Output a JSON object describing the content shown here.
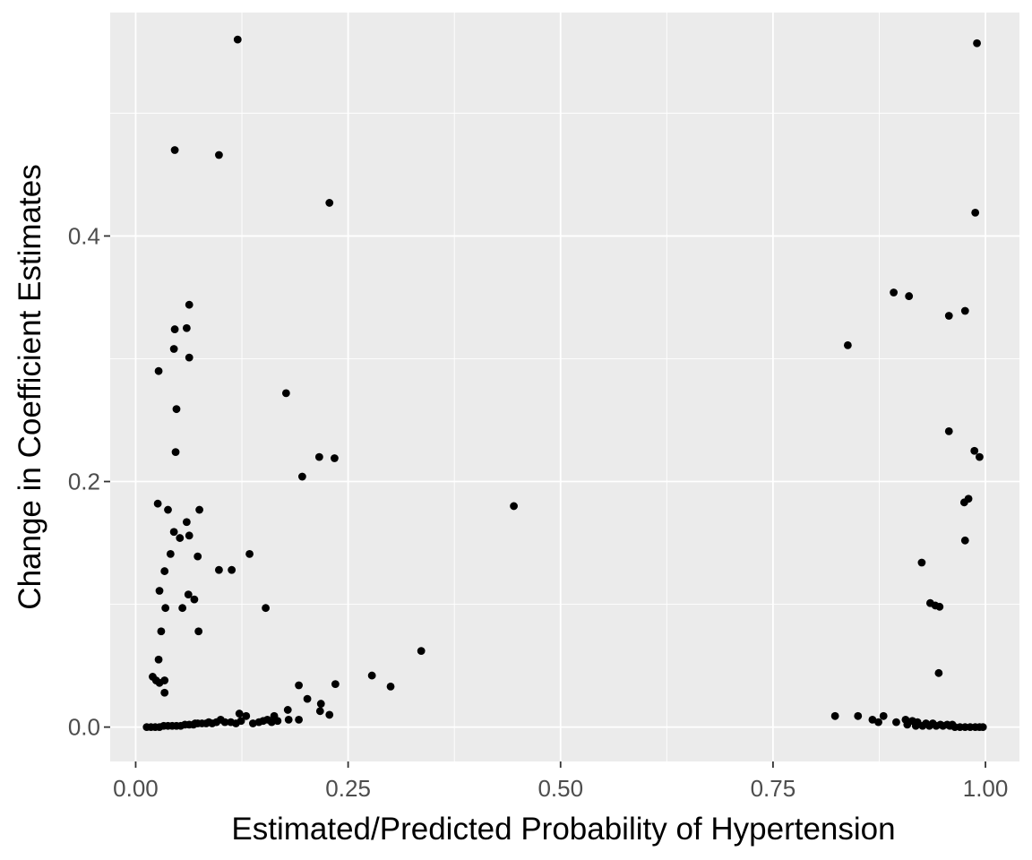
{
  "chart_data": {
    "type": "scatter",
    "title": "",
    "xlabel": "Estimated/Predicted Probability of Hypertension",
    "ylabel": "Change in Coefficient Estimates",
    "xlim": [
      -0.03,
      1.04
    ],
    "ylim": [
      -0.028,
      0.582
    ],
    "x_ticks": [
      0.0,
      0.25,
      0.5,
      0.75,
      1.0
    ],
    "x_tick_labels": [
      "0.00",
      "0.25",
      "0.50",
      "0.75",
      "1.00"
    ],
    "y_ticks": [
      0.0,
      0.2,
      0.4
    ],
    "y_tick_labels": [
      "0.0",
      "0.2",
      "0.4"
    ],
    "grid": true,
    "legend": "none",
    "colors": {
      "panel": "#ebebeb",
      "grid": "#ffffff",
      "point": "#000000"
    },
    "series": [
      {
        "points": [
          [
            0.12,
            0.56
          ],
          [
            0.99,
            0.557
          ],
          [
            0.046,
            0.47
          ],
          [
            0.098,
            0.466
          ],
          [
            0.228,
            0.427
          ],
          [
            0.988,
            0.419
          ],
          [
            0.892,
            0.354
          ],
          [
            0.91,
            0.351
          ],
          [
            0.063,
            0.344
          ],
          [
            0.976,
            0.339
          ],
          [
            0.957,
            0.335
          ],
          [
            0.046,
            0.324
          ],
          [
            0.06,
            0.325
          ],
          [
            0.045,
            0.308
          ],
          [
            0.063,
            0.301
          ],
          [
            0.838,
            0.311
          ],
          [
            0.027,
            0.29
          ],
          [
            0.177,
            0.272
          ],
          [
            0.048,
            0.259
          ],
          [
            0.957,
            0.241
          ],
          [
            0.987,
            0.225
          ],
          [
            0.993,
            0.22
          ],
          [
            0.047,
            0.224
          ],
          [
            0.216,
            0.22
          ],
          [
            0.234,
            0.219
          ],
          [
            0.196,
            0.204
          ],
          [
            0.98,
            0.186
          ],
          [
            0.975,
            0.183
          ],
          [
            0.026,
            0.182
          ],
          [
            0.445,
            0.18
          ],
          [
            0.038,
            0.177
          ],
          [
            0.075,
            0.177
          ],
          [
            0.06,
            0.167
          ],
          [
            0.045,
            0.159
          ],
          [
            0.052,
            0.154
          ],
          [
            0.063,
            0.156
          ],
          [
            0.976,
            0.152
          ],
          [
            0.041,
            0.141
          ],
          [
            0.073,
            0.139
          ],
          [
            0.134,
            0.141
          ],
          [
            0.925,
            0.134
          ],
          [
            0.098,
            0.128
          ],
          [
            0.113,
            0.128
          ],
          [
            0.034,
            0.127
          ],
          [
            0.028,
            0.111
          ],
          [
            0.062,
            0.108
          ],
          [
            0.069,
            0.104
          ],
          [
            0.935,
            0.101
          ],
          [
            0.941,
            0.099
          ],
          [
            0.946,
            0.098
          ],
          [
            0.035,
            0.097
          ],
          [
            0.055,
            0.097
          ],
          [
            0.153,
            0.097
          ],
          [
            0.03,
            0.078
          ],
          [
            0.074,
            0.078
          ],
          [
            0.336,
            0.062
          ],
          [
            0.027,
            0.055
          ],
          [
            0.945,
            0.044
          ],
          [
            0.278,
            0.042
          ],
          [
            0.02,
            0.041
          ],
          [
            0.024,
            0.038
          ],
          [
            0.034,
            0.038
          ],
          [
            0.028,
            0.036
          ],
          [
            0.192,
            0.034
          ],
          [
            0.235,
            0.035
          ],
          [
            0.3,
            0.033
          ],
          [
            0.034,
            0.028
          ],
          [
            0.202,
            0.023
          ],
          [
            0.218,
            0.019
          ],
          [
            0.179,
            0.014
          ],
          [
            0.122,
            0.011
          ],
          [
            0.217,
            0.013
          ],
          [
            0.228,
            0.01
          ],
          [
            0.823,
            0.009
          ],
          [
            0.85,
            0.009
          ],
          [
            0.88,
            0.009
          ],
          [
            0.13,
            0.009
          ],
          [
            0.163,
            0.009
          ],
          [
            0.1,
            0.006
          ],
          [
            0.867,
            0.006
          ],
          [
            0.874,
            0.004
          ],
          [
            0.895,
            0.004
          ],
          [
            0.906,
            0.006
          ],
          [
            0.914,
            0.005
          ],
          [
            0.92,
            0.004
          ],
          [
            0.18,
            0.006
          ],
          [
            0.192,
            0.006
          ],
          [
            0.145,
            0.004
          ],
          [
            0.086,
            0.004
          ],
          [
            0.112,
            0.004
          ],
          [
            0.07,
            0.003
          ],
          [
            0.16,
            0.004
          ],
          [
            0.93,
            0.003
          ],
          [
            0.938,
            0.003
          ],
          [
            0.955,
            0.002
          ],
          [
            0.013,
            0.0
          ],
          [
            0.018,
            0.0
          ],
          [
            0.023,
            0.0
          ],
          [
            0.028,
            0.0
          ],
          [
            0.033,
            0.001
          ],
          [
            0.038,
            0.001
          ],
          [
            0.043,
            0.001
          ],
          [
            0.048,
            0.001
          ],
          [
            0.053,
            0.001
          ],
          [
            0.058,
            0.002
          ],
          [
            0.063,
            0.002
          ],
          [
            0.068,
            0.002
          ],
          [
            0.073,
            0.003
          ],
          [
            0.078,
            0.003
          ],
          [
            0.083,
            0.003
          ],
          [
            0.09,
            0.003
          ],
          [
            0.095,
            0.004
          ],
          [
            0.105,
            0.004
          ],
          [
            0.118,
            0.003
          ],
          [
            0.124,
            0.005
          ],
          [
            0.138,
            0.003
          ],
          [
            0.15,
            0.005
          ],
          [
            0.155,
            0.006
          ],
          [
            0.167,
            0.005
          ],
          [
            0.908,
            0.002
          ],
          [
            0.918,
            0.001
          ],
          [
            0.926,
            0.001
          ],
          [
            0.934,
            0.001
          ],
          [
            0.942,
            0.001
          ],
          [
            0.95,
            0.001
          ],
          [
            0.958,
            0.001
          ],
          [
            0.964,
            0.0
          ],
          [
            0.97,
            0.0
          ],
          [
            0.976,
            0.0
          ],
          [
            0.982,
            0.0
          ],
          [
            0.988,
            0.0
          ],
          [
            0.993,
            0.0
          ],
          [
            0.997,
            0.0
          ],
          [
            0.961,
            0.002
          ],
          [
            0.947,
            0.002
          ]
        ]
      }
    ]
  }
}
